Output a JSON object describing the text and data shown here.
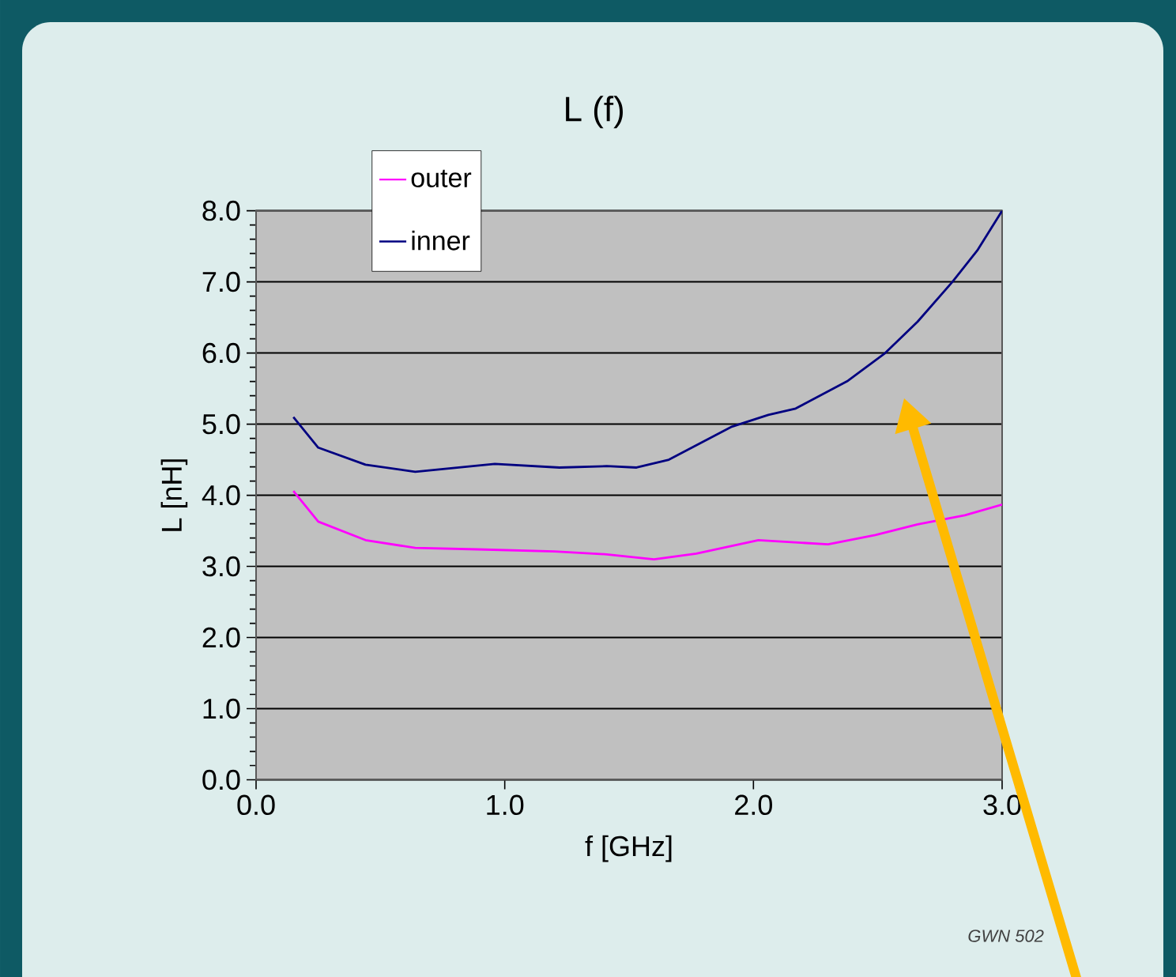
{
  "chart_data": {
    "type": "line",
    "title": "L (f)",
    "xlabel": "f [GHz]",
    "ylabel": "L [nH]",
    "xlim": [
      0,
      3
    ],
    "ylim": [
      0,
      8
    ],
    "xticks": [
      {
        "value": 0,
        "label": "0.0"
      },
      {
        "value": 1,
        "label": "1.0"
      },
      {
        "value": 2,
        "label": "2.0"
      },
      {
        "value": 3,
        "label": "3.0"
      }
    ],
    "yticks": [
      {
        "value": 0,
        "label": "0.0"
      },
      {
        "value": 1,
        "label": "1.0"
      },
      {
        "value": 2,
        "label": "2.0"
      },
      {
        "value": 3,
        "label": "3.0"
      },
      {
        "value": 4,
        "label": "4.0"
      },
      {
        "value": 5,
        "label": "5.0"
      },
      {
        "value": 6,
        "label": "6.0"
      },
      {
        "value": 7,
        "label": "7.0"
      },
      {
        "value": 8,
        "label": "8.0"
      }
    ],
    "grid": "y",
    "legend": "top left",
    "series": [
      {
        "name": "outer",
        "color": "#ff00ff",
        "x": [
          0.15,
          0.25,
          0.44,
          0.64,
          0.89,
          1.2,
          1.41,
          1.6,
          1.77,
          2.02,
          2.3,
          2.49,
          2.66,
          2.85,
          3.0
        ],
        "values": [
          4.06,
          3.63,
          3.37,
          3.26,
          3.24,
          3.21,
          3.17,
          3.1,
          3.18,
          3.37,
          3.31,
          3.44,
          3.59,
          3.72,
          3.87
        ]
      },
      {
        "name": "inner",
        "color": "#000080",
        "x": [
          0.15,
          0.25,
          0.44,
          0.64,
          0.96,
          1.22,
          1.41,
          1.53,
          1.66,
          1.91,
          2.06,
          2.17,
          2.38,
          2.53,
          2.66,
          2.8,
          2.9,
          3.0
        ],
        "values": [
          5.1,
          4.67,
          4.43,
          4.33,
          4.44,
          4.39,
          4.41,
          4.39,
          4.5,
          4.96,
          5.13,
          5.22,
          5.61,
          6.0,
          6.44,
          7.0,
          7.44,
          8.0
        ]
      }
    ],
    "annotations": [
      "GWN 502"
    ]
  }
}
